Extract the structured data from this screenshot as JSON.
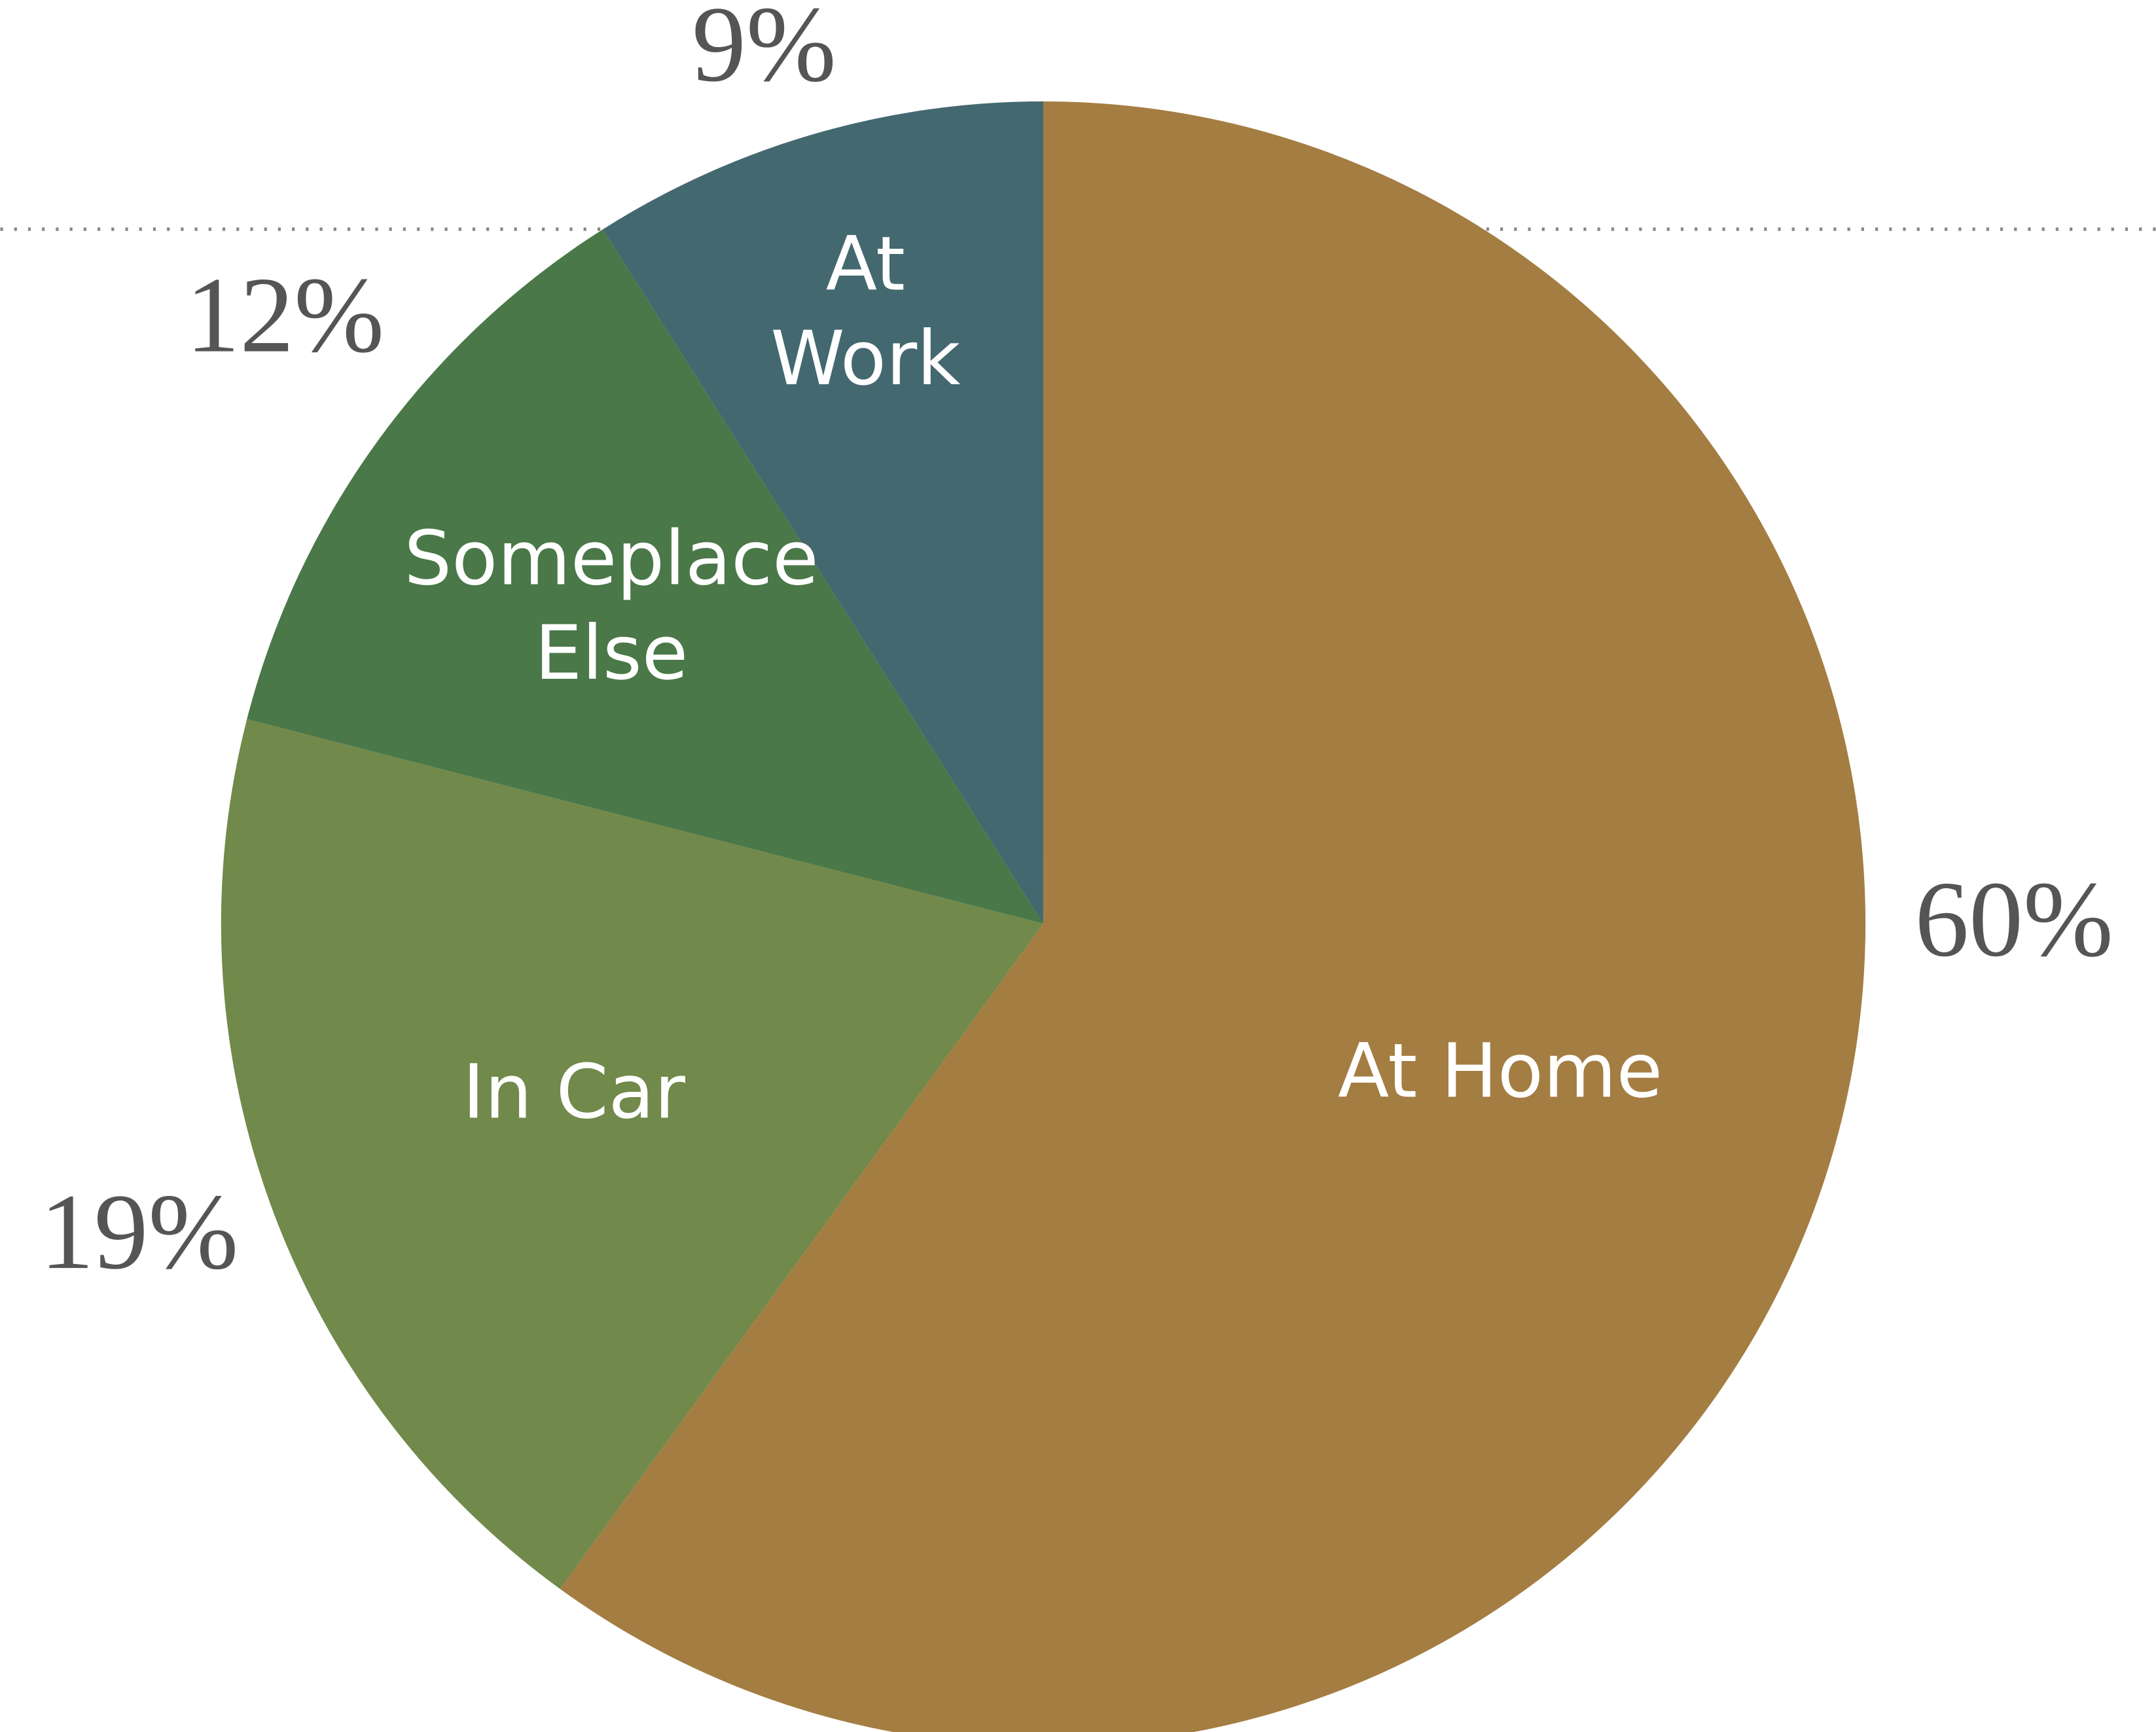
{
  "chart_data": {
    "type": "pie",
    "categories": [
      "At\nHome",
      "In Car",
      "Someplace\nElse",
      "At\nWork"
    ],
    "values": [
      60,
      19,
      12,
      9
    ],
    "value_labels": [
      "60%",
      "19%",
      "12%",
      "9%"
    ],
    "colors": [
      "#a47d42",
      "#71894a",
      "#4a7848",
      "#44686f"
    ]
  }
}
